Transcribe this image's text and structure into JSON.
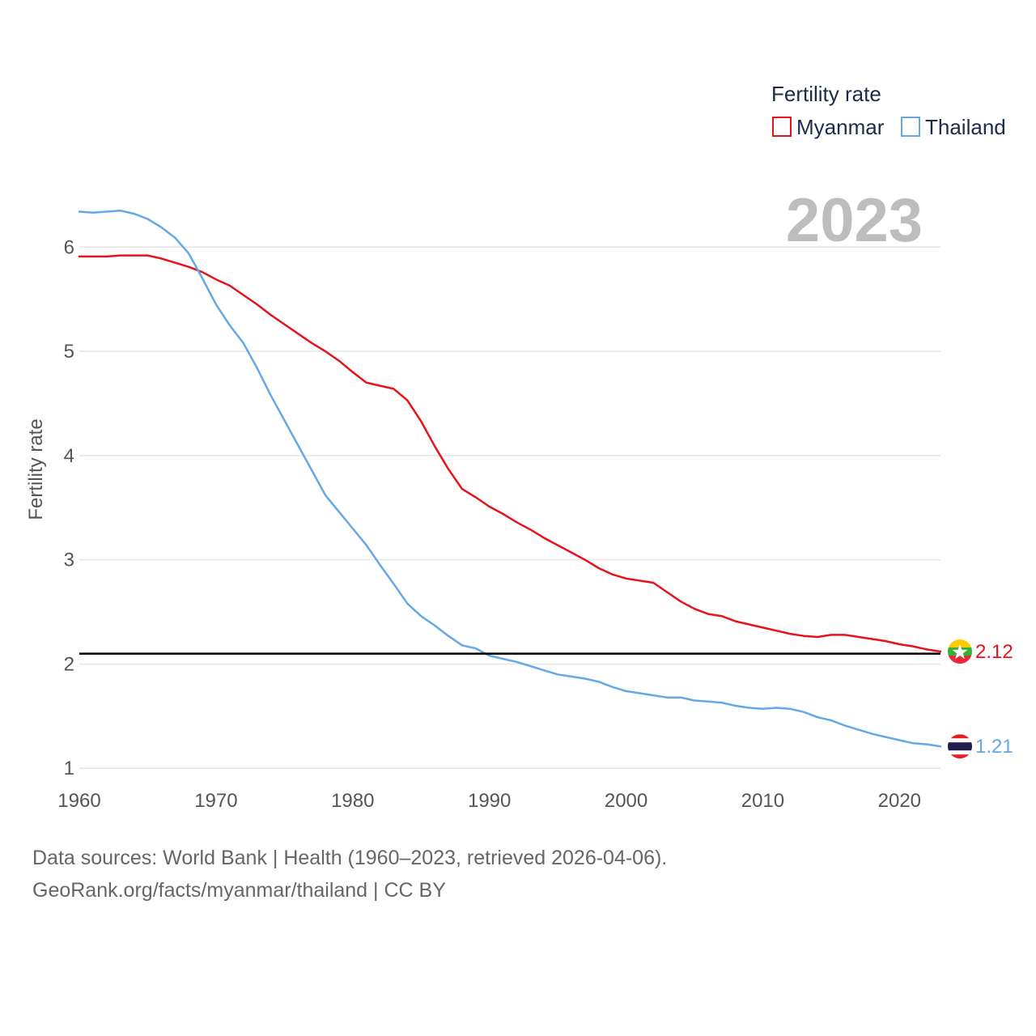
{
  "footer": {
    "sources": "Data sources: World Bank | Health (1960–2023, retrieved 2026-04-06).",
    "credit": "GeoRank.org/facts/myanmar/thailand | CC BY"
  },
  "chart_data": {
    "type": "line",
    "title": "",
    "year_label": "2023",
    "xlabel": "",
    "ylabel": "Fertility rate",
    "xlim": [
      1960,
      2023
    ],
    "ylim": [
      0.8,
      6.6
    ],
    "x_ticks": [
      1960,
      1970,
      1980,
      1990,
      2000,
      2010,
      2020
    ],
    "y_ticks": [
      1,
      2,
      3,
      4,
      5,
      6
    ],
    "grid": true,
    "legend": {
      "title": "Fertility rate",
      "position": "top-right"
    },
    "reference_line": {
      "value": 2.1,
      "color": "#000000"
    },
    "x": [
      1960,
      1961,
      1962,
      1963,
      1964,
      1965,
      1966,
      1967,
      1968,
      1969,
      1970,
      1971,
      1972,
      1973,
      1974,
      1975,
      1976,
      1977,
      1978,
      1979,
      1980,
      1981,
      1982,
      1983,
      1984,
      1985,
      1986,
      1987,
      1988,
      1989,
      1990,
      1991,
      1992,
      1993,
      1994,
      1995,
      1996,
      1997,
      1998,
      1999,
      2000,
      2001,
      2002,
      2003,
      2004,
      2005,
      2006,
      2007,
      2008,
      2009,
      2010,
      2011,
      2012,
      2013,
      2014,
      2015,
      2016,
      2017,
      2018,
      2019,
      2020,
      2021,
      2022,
      2023
    ],
    "series": [
      {
        "name": "Myanmar",
        "color": "#e8121a",
        "end_label": "2.12",
        "flag": "myanmar",
        "values": [
          5.91,
          5.91,
          5.91,
          5.92,
          5.92,
          5.92,
          5.89,
          5.85,
          5.81,
          5.76,
          5.69,
          5.63,
          5.54,
          5.45,
          5.35,
          5.26,
          5.17,
          5.08,
          5.0,
          4.91,
          4.8,
          4.7,
          4.67,
          4.64,
          4.53,
          4.33,
          4.09,
          3.87,
          3.68,
          3.6,
          3.51,
          3.44,
          3.36,
          3.29,
          3.21,
          3.14,
          3.07,
          3.0,
          2.92,
          2.86,
          2.82,
          2.8,
          2.78,
          2.69,
          2.6,
          2.53,
          2.48,
          2.46,
          2.41,
          2.38,
          2.35,
          2.32,
          2.29,
          2.27,
          2.26,
          2.28,
          2.28,
          2.26,
          2.24,
          2.22,
          2.19,
          2.17,
          2.14,
          2.12
        ]
      },
      {
        "name": "Thailand",
        "color": "#64a8e8",
        "end_label": "1.21",
        "flag": "thailand",
        "values": [
          6.34,
          6.33,
          6.34,
          6.35,
          6.32,
          6.27,
          6.19,
          6.09,
          5.94,
          5.7,
          5.45,
          5.25,
          5.08,
          4.84,
          4.58,
          4.34,
          4.1,
          3.86,
          3.62,
          3.46,
          3.3,
          3.14,
          2.95,
          2.77,
          2.58,
          2.46,
          2.37,
          2.27,
          2.18,
          2.15,
          2.08,
          2.05,
          2.02,
          1.98,
          1.94,
          1.9,
          1.88,
          1.86,
          1.83,
          1.78,
          1.74,
          1.72,
          1.7,
          1.68,
          1.68,
          1.65,
          1.64,
          1.63,
          1.6,
          1.58,
          1.57,
          1.58,
          1.57,
          1.54,
          1.49,
          1.46,
          1.41,
          1.37,
          1.33,
          1.3,
          1.27,
          1.24,
          1.23,
          1.21
        ]
      }
    ]
  }
}
